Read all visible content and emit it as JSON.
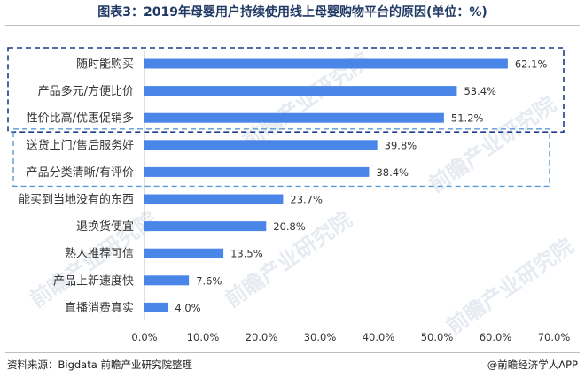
{
  "header": {
    "title": "图表3：2019年母婴用户持续使用线上母婴购物平台的原因(单位：%)"
  },
  "footer": {
    "source": "资料来源：Bigdata 前瞻产业研究院整理",
    "brand": "@前瞻经济学人APP"
  },
  "watermark": "前瞻产业研究院",
  "chart_data": {
    "type": "bar",
    "orientation": "horizontal",
    "title": "图表3：2019年母婴用户持续使用线上母婴购物平台的原因(单位：%)",
    "categories": [
      "随时能购买",
      "产品多元/方便比价",
      "性价比高/优惠促销多",
      "送货上门/售后服务好",
      "产品分类清晰/有评价",
      "能买到当地没有的东西",
      "退换货便宜",
      "熟人推荐可信",
      "产品上新速度快",
      "直播消费真实"
    ],
    "values": [
      62.1,
      53.4,
      51.2,
      39.8,
      38.4,
      23.7,
      20.8,
      13.5,
      7.6,
      4.0
    ],
    "value_labels": [
      "62.1%",
      "53.4%",
      "51.2%",
      "39.8%",
      "38.4%",
      "23.7%",
      "20.8%",
      "13.5%",
      "7.6%",
      "4.0%"
    ],
    "x_ticks": [
      0,
      10,
      20,
      30,
      40,
      50,
      60,
      70
    ],
    "x_tick_labels": [
      "0.0%",
      "10.0%",
      "20.0%",
      "30.0%",
      "40.0%",
      "50.0%",
      "60.0%",
      "70.0%"
    ],
    "xlim": [
      0,
      70
    ],
    "grid": false,
    "bar_color": "#4a86e8",
    "highlight_groups": [
      {
        "categories": [
          "随时能购买",
          "产品多元/方便比价",
          "性价比高/优惠促销多"
        ],
        "color": "#1f3c88",
        "style": "dashed"
      },
      {
        "categories": [
          "送货上门/售后服务好",
          "产品分类清晰/有评价"
        ],
        "color": "#5b9bd5",
        "style": "dashed"
      }
    ]
  }
}
